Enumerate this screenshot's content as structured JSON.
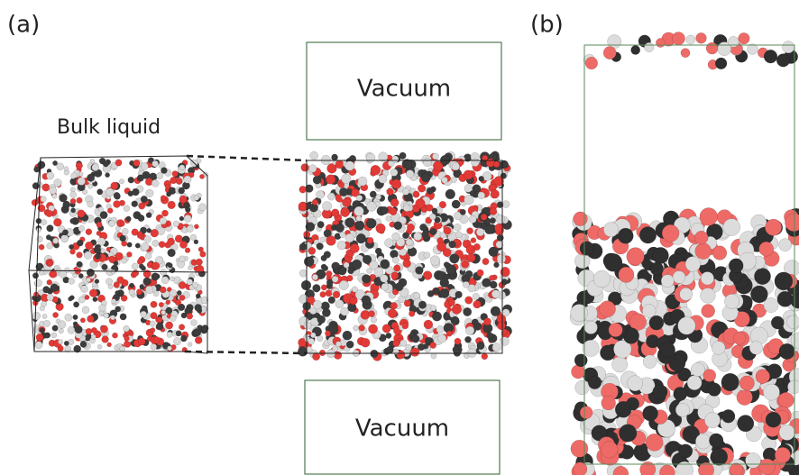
{
  "panels": [
    {
      "label": "(a)",
      "bulk_label": "Bulk liquid",
      "vacuum_top": "Vacuum",
      "vacuum_bottom": "Vacuum"
    },
    {
      "label": "(b)"
    }
  ]
}
